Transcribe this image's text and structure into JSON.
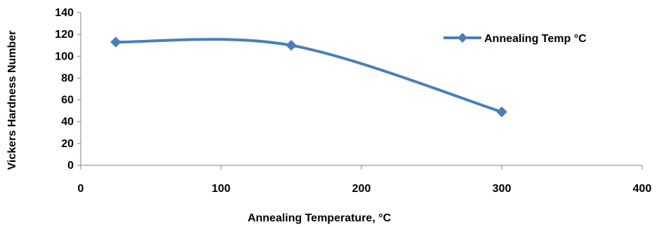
{
  "chart_data": {
    "type": "line",
    "title": "",
    "xlabel": "Annealing Temperature, °C",
    "ylabel": "Vickers Hardness Number",
    "xlim": [
      0,
      400
    ],
    "ylim": [
      0,
      140
    ],
    "x_ticks": [
      "0",
      "100",
      "200",
      "300",
      "400"
    ],
    "y_ticks": [
      "0",
      "20",
      "40",
      "60",
      "80",
      "100",
      "120",
      "140"
    ],
    "grid": false,
    "legend_position": "top-right",
    "series": [
      {
        "name": "Annealing Temp °C",
        "color": "#4a7ebb",
        "marker": "diamond",
        "smooth": true,
        "x": [
          25,
          150,
          300
        ],
        "y": [
          113,
          110,
          49
        ]
      }
    ]
  }
}
